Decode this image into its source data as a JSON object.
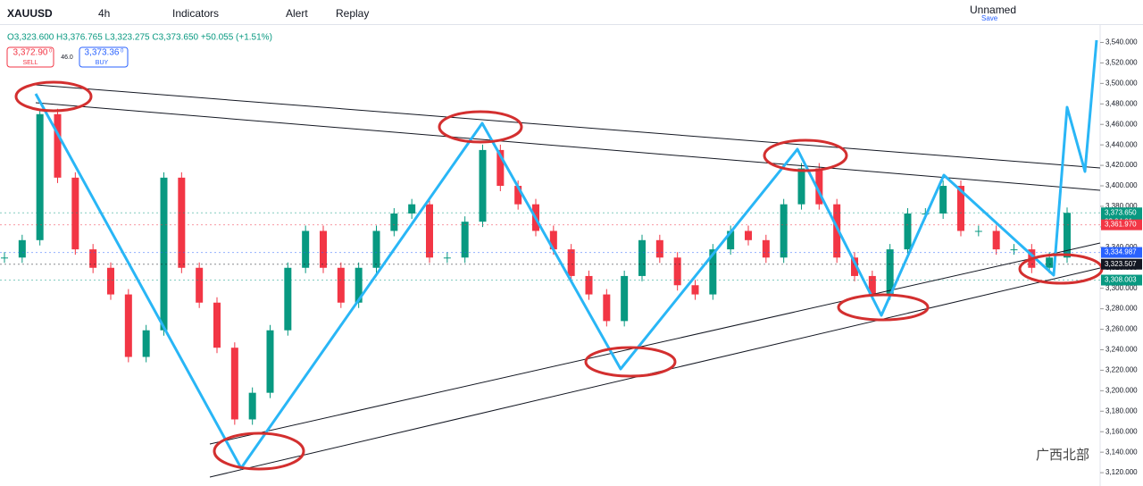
{
  "toolbar": {
    "symbol": "XAUUSD",
    "interval": "4h",
    "indicators": "Indicators",
    "alert": "Alert",
    "replay": "Replay",
    "layout_name": "Unnamed",
    "save": "Save"
  },
  "legend": {
    "ohlc": "O3,323.600 H3,376.765 L3,323.275 C3,373.650 +50.055 (+1.51%)",
    "sell_price": "3,372.90",
    "sell_sup": "0",
    "sell": "SELL",
    "spread": "46.0",
    "buy_price": "3,373.36",
    "buy_sup": "0",
    "buy": "BUY"
  },
  "watermark": "广西北部",
  "chart_data": {
    "type": "candlestick",
    "series": [
      {
        "name": "XAUUSD",
        "up_color": "#089981",
        "down_color": "#f23645",
        "values": [
          3330,
          3347,
          3470,
          3408,
          3338,
          3320,
          3294,
          3233,
          3259,
          3408,
          3320,
          3286,
          3242,
          3172,
          3198,
          3259,
          3320,
          3356,
          3320,
          3286,
          3320,
          3356,
          3373,
          3382,
          3330,
          3330,
          3365,
          3435,
          3400,
          3382,
          3356,
          3338,
          3312,
          3294,
          3268,
          3312,
          3347,
          3330,
          3303,
          3294,
          3338,
          3356,
          3347,
          3330,
          3382,
          3417,
          3382,
          3330,
          3312,
          3294,
          3338,
          3373,
          3373,
          3400,
          3356,
          3356,
          3338,
          3338,
          3320,
          3330,
          3373.65
        ]
      }
    ],
    "ylim": [
      3107,
      3557
    ],
    "yticks": [
      {
        "value": 3120,
        "label": "3,120.000"
      },
      {
        "value": 3140,
        "label": "3,140.000"
      },
      {
        "value": 3160,
        "label": "3,160.000"
      },
      {
        "value": 3180,
        "label": "3,180.000"
      },
      {
        "value": 3200,
        "label": "3,200.000"
      },
      {
        "value": 3220,
        "label": "3,220.000"
      },
      {
        "value": 3240,
        "label": "3,240.000"
      },
      {
        "value": 3260,
        "label": "3,260.000"
      },
      {
        "value": 3280,
        "label": "3,280.000"
      },
      {
        "value": 3300,
        "label": "3,300.000"
      },
      {
        "value": 3320,
        "label": "3,320.000"
      },
      {
        "value": 3340,
        "label": "3,340.000"
      },
      {
        "value": 3360,
        "label": "3,360.000"
      },
      {
        "value": 3380,
        "label": "3,380.000"
      },
      {
        "value": 3400,
        "label": "3,400.000"
      },
      {
        "value": 3420,
        "label": "3,420.000"
      },
      {
        "value": 3440,
        "label": "3,440.000"
      },
      {
        "value": 3460,
        "label": "3,460.000"
      },
      {
        "value": 3480,
        "label": "3,480.000"
      },
      {
        "value": 3500,
        "label": "3,500.000"
      },
      {
        "value": 3520,
        "label": "3,520.000"
      },
      {
        "value": 3540,
        "label": "3,540.000"
      }
    ],
    "price_tags": [
      {
        "value": 3373.65,
        "label": "3,373.650",
        "color": "#089981"
      },
      {
        "value": 3361.97,
        "label": "3,361.970",
        "color": "#f23645"
      },
      {
        "value": 3334.987,
        "label": "3,334.987",
        "color": "#2962ff"
      },
      {
        "value": 3323.507,
        "label": "3,323.507",
        "color": "#131722"
      },
      {
        "value": 3308.003,
        "label": "3,308.003",
        "color": "#089981"
      }
    ],
    "countdown": "02:04:01"
  }
}
